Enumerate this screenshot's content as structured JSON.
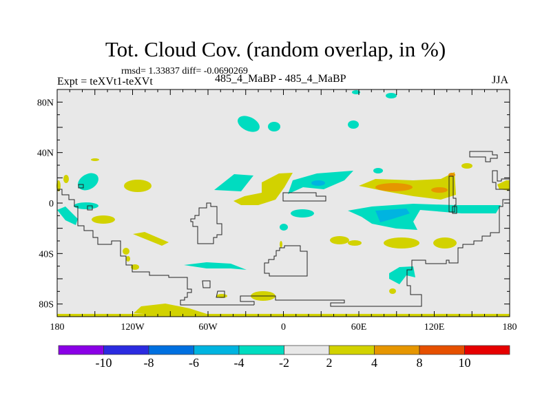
{
  "chart_data": {
    "type": "heatmap",
    "subtype": "filled-contour-map",
    "title": "Tot. Cloud Cov. (random overlap, in %)",
    "stats": "rmsd= 1.33837 diff= -0.0690269",
    "left_label": "Expt = teXVt1-teXVt",
    "center_label": "485_4_MaBP - 485_4_MaBP",
    "right_label": "JJA",
    "x_ticks": [
      {
        "value": -180,
        "label": "180"
      },
      {
        "value": -120,
        "label": "120W"
      },
      {
        "value": -60,
        "label": "60W"
      },
      {
        "value": 0,
        "label": "0"
      },
      {
        "value": 60,
        "label": "60E"
      },
      {
        "value": 120,
        "label": "120E"
      },
      {
        "value": 180,
        "label": "180"
      }
    ],
    "y_ticks": [
      {
        "value": 80,
        "label": "80N"
      },
      {
        "value": 40,
        "label": "40N"
      },
      {
        "value": 0,
        "label": "0"
      },
      {
        "value": -40,
        "label": "40S"
      },
      {
        "value": -80,
        "label": "80S"
      }
    ],
    "xlim": [
      -180,
      180
    ],
    "ylim": [
      -90,
      90
    ],
    "colorbar": {
      "levels": [
        "-10",
        "-8",
        "-6",
        "-4",
        "-2",
        "2",
        "4",
        "8",
        "10"
      ],
      "colors": [
        "#8a00e6",
        "#2b2be0",
        "#0070e0",
        "#00b4e0",
        "#00dcc0",
        "#e8e8e8",
        "#d2d200",
        "#e69600",
        "#e65000",
        "#e60000"
      ]
    }
  }
}
